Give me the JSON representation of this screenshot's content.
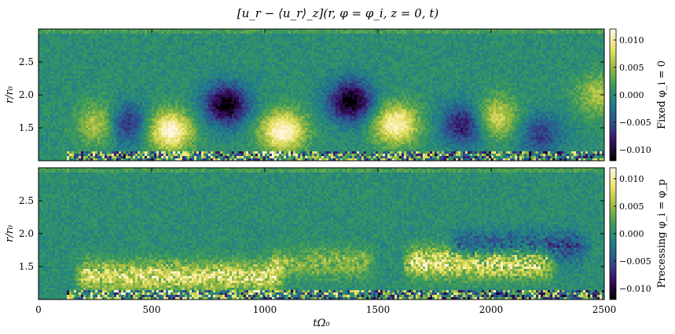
{
  "chart_data": {
    "type": "heatmap",
    "title": "[u_r − ⟨u_r⟩_z](r, φ = φ_i, z = 0, t)",
    "xlabel": "tΩ₀",
    "xlim": [
      0,
      2500
    ],
    "x_ticks": [
      "0",
      "500",
      "1000",
      "1500",
      "2000",
      "2500"
    ],
    "colormap": "cubehelix-like (black–purple–teal–green–yellow–cream)",
    "colormap_stops": [
      "#000000",
      "#3a0e62",
      "#2f4f8f",
      "#1f7e8a",
      "#3c9a5a",
      "#9dbb3f",
      "#ece36a",
      "#fff6e6"
    ],
    "colorbar_limits": [
      -0.012,
      0.012
    ],
    "colorbar_ticks": [
      "0.010",
      "0.005",
      "0.000",
      "−0.005",
      "−0.010"
    ],
    "colorbar_tick_values": [
      0.01,
      0.005,
      0.0,
      -0.005,
      -0.01
    ],
    "panels": [
      {
        "name": "fixed",
        "colorbar_label": "Fixed φ_i = 0",
        "ylabel": "r/r₀",
        "ylim": [
          1.0,
          3.0
        ],
        "y_ticks": [
          "2.5",
          "2.0",
          "1.5"
        ],
        "y_tick_values": [
          2.5,
          2.0,
          1.5
        ],
        "features": [
          {
            "kind": "positive-lobe",
            "t_center": 280,
            "r_center": 1.55,
            "amplitude": 0.008
          },
          {
            "kind": "negative-lobe",
            "t_center": 380,
            "r_center": 1.55,
            "amplitude": -0.009
          },
          {
            "kind": "positive-lobe",
            "t_center": 580,
            "r_center": 1.45,
            "amplitude": 0.012
          },
          {
            "kind": "negative-lobe",
            "t_center": 830,
            "r_center": 1.85,
            "amplitude": -0.012
          },
          {
            "kind": "positive-lobe",
            "t_center": 1080,
            "r_center": 1.45,
            "amplitude": 0.012
          },
          {
            "kind": "negative-lobe",
            "t_center": 1380,
            "r_center": 1.9,
            "amplitude": -0.012
          },
          {
            "kind": "positive-lobe",
            "t_center": 1580,
            "r_center": 1.55,
            "amplitude": 0.011
          },
          {
            "kind": "negative-lobe",
            "t_center": 1880,
            "r_center": 1.55,
            "amplitude": -0.009
          },
          {
            "kind": "positive-lobe",
            "t_center": 2020,
            "r_center": 1.65,
            "amplitude": 0.008
          },
          {
            "kind": "negative-lobe",
            "t_center": 2220,
            "r_center": 1.4,
            "amplitude": -0.006
          },
          {
            "kind": "positive-lobe",
            "t_center": 2480,
            "r_center": 2.0,
            "amplitude": 0.006
          }
        ]
      },
      {
        "name": "precessing",
        "colorbar_label": "Precessing φ_i = φ_p",
        "ylabel": "r/r₀",
        "ylim": [
          1.0,
          3.0
        ],
        "y_ticks": [
          "2.5",
          "2.0",
          "1.5"
        ],
        "y_tick_values": [
          2.5,
          2.0,
          1.5
        ],
        "features": [
          {
            "kind": "noisy-band",
            "t_start": 150,
            "t_end": 1100,
            "r_center": 1.35,
            "amplitude": 0.009
          },
          {
            "kind": "noisy-band",
            "t_start": 1000,
            "t_end": 1500,
            "r_center": 1.55,
            "amplitude": 0.005
          },
          {
            "kind": "noisy-band",
            "t_start": 1600,
            "t_end": 2300,
            "r_center": 1.55,
            "amplitude": 0.01
          },
          {
            "kind": "negative-band",
            "t_start": 1800,
            "t_end": 2450,
            "r_center": 1.8,
            "amplitude": -0.006
          }
        ]
      }
    ]
  }
}
